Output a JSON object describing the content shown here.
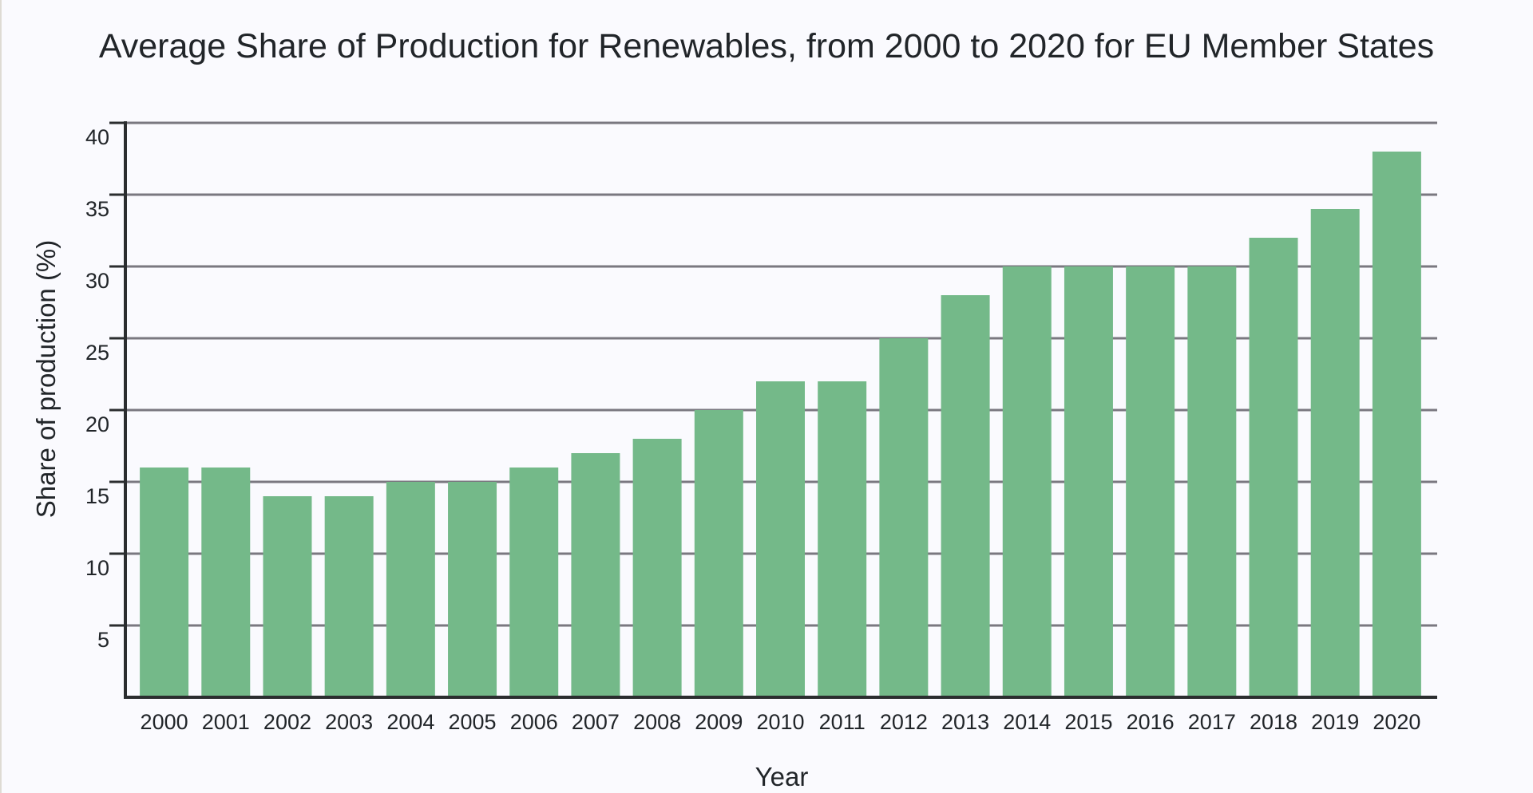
{
  "chart_data": {
    "type": "bar",
    "title": "Average Share of Production for Renewables, from 2000 to 2020 for EU Member States",
    "xlabel": "Year",
    "ylabel": "Share of production (%)",
    "categories": [
      "2000",
      "2001",
      "2002",
      "2003",
      "2004",
      "2005",
      "2006",
      "2007",
      "2008",
      "2009",
      "2010",
      "2011",
      "2012",
      "2013",
      "2014",
      "2015",
      "2016",
      "2017",
      "2018",
      "2019",
      "2020"
    ],
    "values": [
      16,
      16,
      14,
      14,
      15,
      15,
      16,
      17,
      18,
      20,
      22,
      22,
      25,
      28,
      30,
      30,
      30,
      30,
      32,
      34,
      38
    ],
    "ylim": [
      0,
      40
    ],
    "yticks": [
      5,
      10,
      15,
      20,
      25,
      30,
      35,
      40
    ],
    "grid": true,
    "colors": {
      "bar": "#74b989",
      "grid": "#7a7880",
      "axis": "#2b2d2f",
      "text": "#212529",
      "background": "#fafafe"
    }
  }
}
